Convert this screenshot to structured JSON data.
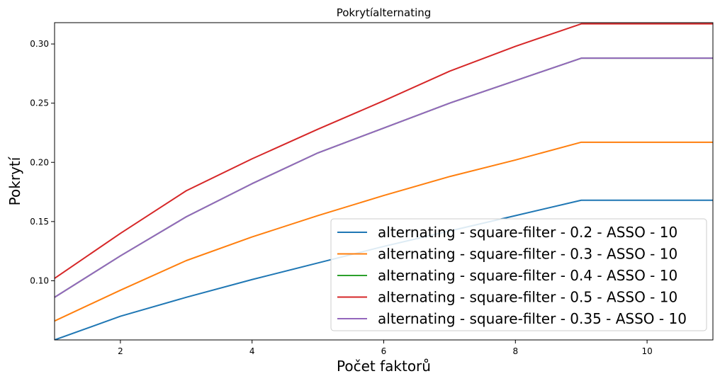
{
  "chart_data": {
    "type": "line",
    "title": "Pokrytíalternating",
    "xlabel": "Počet faktorů",
    "ylabel": "Pokrytí",
    "xlim": [
      1,
      11
    ],
    "ylim": [
      0.05,
      0.318
    ],
    "xticks": [
      2,
      4,
      6,
      8,
      10
    ],
    "yticks": [
      0.1,
      0.15,
      0.2,
      0.25,
      0.3
    ],
    "xtick_labels": [
      "2",
      "4",
      "6",
      "8",
      "10"
    ],
    "ytick_labels": [
      "0.10",
      "0.15",
      "0.20",
      "0.25",
      "0.30"
    ],
    "legend_position": "lower-right",
    "grid": false,
    "series": [
      {
        "name": "alternating - square-filter - 0.2 - ASSO - 10",
        "color": "#1f77b4",
        "x": [
          1,
          2,
          3,
          4,
          5,
          6,
          7,
          8,
          9,
          10,
          11
        ],
        "y": [
          0.05,
          0.07,
          0.086,
          0.101,
          0.115,
          0.129,
          0.142,
          0.155,
          0.168,
          0.168,
          0.168
        ]
      },
      {
        "name": "alternating - square-filter - 0.3 - ASSO - 10",
        "color": "#ff7f0e",
        "x": [
          1,
          2,
          3,
          4,
          5,
          6,
          7,
          8,
          9,
          10,
          11
        ],
        "y": [
          0.066,
          0.092,
          0.117,
          0.137,
          0.155,
          0.172,
          0.188,
          0.202,
          0.217,
          0.217,
          0.217
        ]
      },
      {
        "name": "alternating - square-filter - 0.4 - ASSO - 10",
        "color": "#2ca02c",
        "x": [
          1,
          2,
          3,
          4,
          5,
          6,
          7,
          8,
          9,
          10,
          11
        ],
        "y": [
          0.086,
          0.121,
          0.154,
          0.182,
          0.208,
          0.229,
          0.25,
          0.269,
          0.288,
          0.288,
          0.288
        ]
      },
      {
        "name": "alternating - square-filter - 0.5 - ASSO - 10",
        "color": "#d62728",
        "x": [
          1,
          2,
          3,
          4,
          5,
          6,
          7,
          8,
          9,
          10,
          11
        ],
        "y": [
          0.102,
          0.14,
          0.176,
          0.203,
          0.228,
          0.252,
          0.277,
          0.298,
          0.317,
          0.317,
          0.317
        ]
      },
      {
        "name": "alternating - square-filter - 0.35 - ASSO - 10",
        "color": "#9467bd",
        "x": [
          1,
          2,
          3,
          4,
          5,
          6,
          7,
          8,
          9,
          10,
          11
        ],
        "y": [
          0.086,
          0.121,
          0.154,
          0.182,
          0.208,
          0.229,
          0.25,
          0.269,
          0.288,
          0.288,
          0.288
        ]
      }
    ]
  }
}
